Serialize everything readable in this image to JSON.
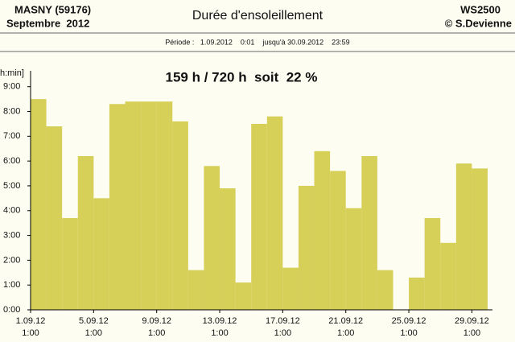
{
  "chart_data": {
    "type": "bar",
    "station": "MASNY (59176)",
    "period_label": "Septembre  2012",
    "title": "Durée d'ensoleillement",
    "device": "WS2500",
    "author": "© S.Devienne",
    "period": "Période :   1.09.2012    0:01    jusqu'à 30.09.2012    23:59",
    "annotation": "159 h / 720 h  soit  22 %",
    "y_label": "h:min]",
    "color": "#d6cf58",
    "categories": [
      "1.09.12",
      null,
      null,
      null,
      "5.09.12",
      null,
      null,
      null,
      "9.09.12",
      null,
      null,
      null,
      "13.09.12",
      null,
      null,
      null,
      "17.09.12",
      null,
      null,
      null,
      "21.09.12",
      null,
      null,
      null,
      "25.09.12",
      null,
      null,
      null,
      "29.09.12"
    ],
    "category_times": [
      "1:00",
      null,
      null,
      null,
      "1:00",
      null,
      null,
      null,
      "1:00",
      null,
      null,
      null,
      "1:00",
      null,
      null,
      null,
      "1:00",
      null,
      null,
      null,
      "1:00",
      null,
      null,
      null,
      "1:00",
      null,
      null,
      null,
      "1:00"
    ],
    "values": [
      8.5,
      7.4,
      3.7,
      6.2,
      4.5,
      8.3,
      8.4,
      8.4,
      8.4,
      7.6,
      1.6,
      5.8,
      4.9,
      1.1,
      7.5,
      7.8,
      1.7,
      5.0,
      6.4,
      5.6,
      4.1,
      6.2,
      1.6,
      0,
      1.3,
      3.7,
      2.7,
      5.9,
      5.7
    ],
    "ylim": [
      0,
      9.25
    ],
    "yticks": [
      {
        "value": 0,
        "label": "0:00"
      },
      {
        "value": 1,
        "label": "1:00"
      },
      {
        "value": 2,
        "label": "2:00"
      },
      {
        "value": 3,
        "label": "3:00"
      },
      {
        "value": 4,
        "label": "4:00"
      },
      {
        "value": 5,
        "label": "5:00"
      },
      {
        "value": 6,
        "label": "6:00"
      },
      {
        "value": 7,
        "label": "7:00"
      },
      {
        "value": 8,
        "label": "8:00"
      },
      {
        "value": 9,
        "label": "9:00"
      }
    ],
    "grid": false
  }
}
